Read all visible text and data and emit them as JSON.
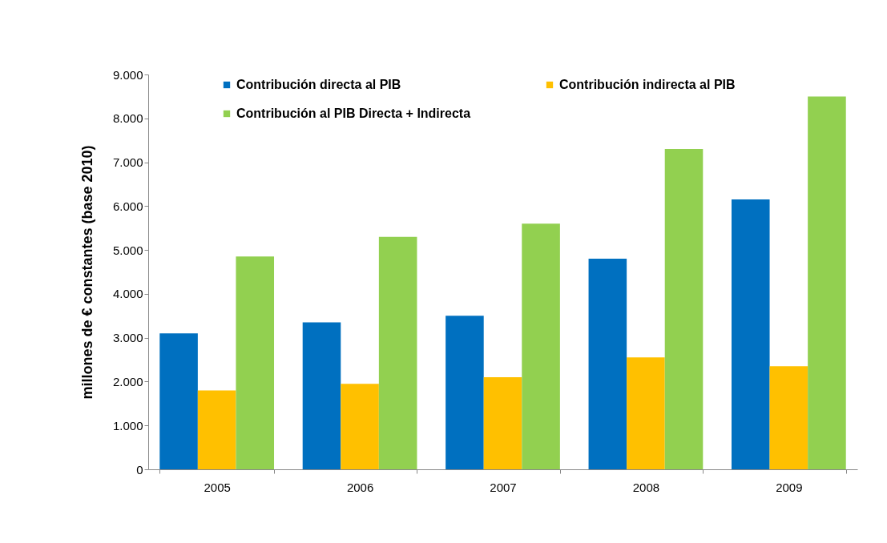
{
  "chart_data": {
    "type": "bar",
    "ylabel": "millones de € constantes  (base  2010)",
    "categories": [
      "2005",
      "2006",
      "2007",
      "2008",
      "2009"
    ],
    "series": [
      {
        "name": "Contribución directa al PIB",
        "color": "#0070c0",
        "values": [
          3100,
          3350,
          3500,
          4800,
          6150
        ]
      },
      {
        "name": "Contribución indirecta al PIB",
        "color": "#ffc000",
        "values": [
          1800,
          1950,
          2100,
          2550,
          2350
        ]
      },
      {
        "name": "Contribución al PIB Directa + Indirecta",
        "color": "#92d050",
        "values": [
          4850,
          5300,
          5600,
          7300,
          8500
        ]
      }
    ],
    "ylim": [
      0,
      9000
    ],
    "yticks": [
      0,
      {
        "value": 1000,
        "label": "1.000"
      },
      {
        "value": 2000,
        "label": "2.000"
      },
      {
        "value": 3000,
        "label": "3.000"
      },
      {
        "value": 4000,
        "label": "4.000"
      },
      {
        "value": 5000,
        "label": "5.000"
      },
      {
        "value": 6000,
        "label": "6.000"
      },
      {
        "value": 7000,
        "label": "7.000"
      },
      {
        "value": 8000,
        "label": "8.000"
      },
      {
        "value": 9000,
        "label": "9.000"
      }
    ],
    "grid": false,
    "legend": "top"
  }
}
